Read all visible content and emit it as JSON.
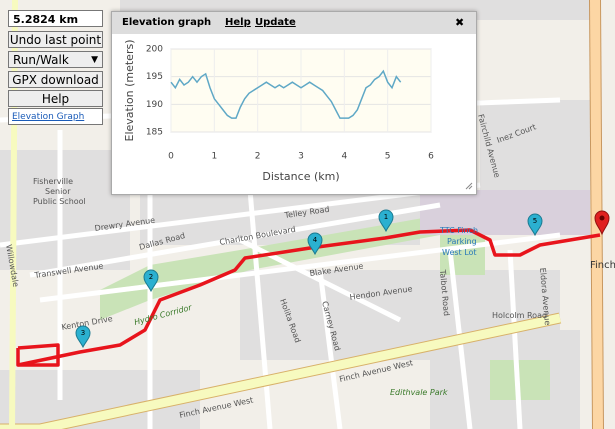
{
  "controls": {
    "distance": "5.2824 km",
    "undo": "Undo last point",
    "mode": "Run/Walk",
    "gpx": "GPX download",
    "help": "Help",
    "elevation_link": "Elevation Graph"
  },
  "popup": {
    "title": "Elevation graph",
    "help": "Help",
    "update": "Update",
    "close": "✖"
  },
  "chart_data": {
    "type": "line",
    "xlabel": "Distance (km)",
    "ylabel": "Elevation (meters)",
    "x": [
      0,
      0.1,
      0.2,
      0.3,
      0.4,
      0.5,
      0.6,
      0.7,
      0.8,
      0.9,
      1.0,
      1.1,
      1.2,
      1.3,
      1.4,
      1.5,
      1.6,
      1.7,
      1.8,
      1.9,
      2.0,
      2.1,
      2.2,
      2.3,
      2.4,
      2.5,
      2.6,
      2.7,
      2.8,
      2.9,
      3.0,
      3.1,
      3.2,
      3.3,
      3.4,
      3.5,
      3.6,
      3.7,
      3.8,
      3.9,
      4.0,
      4.1,
      4.2,
      4.3,
      4.4,
      4.5,
      4.6,
      4.7,
      4.8,
      4.9,
      5.0,
      5.1,
      5.2,
      5.3
    ],
    "values": [
      194,
      193,
      194.5,
      193.5,
      194,
      195,
      194,
      195,
      195.5,
      193,
      191,
      190,
      189,
      188,
      187.5,
      187.5,
      189.5,
      191,
      192,
      192.5,
      193,
      193.5,
      194,
      193.5,
      193,
      193.5,
      193,
      193.5,
      194,
      193.5,
      193,
      193.5,
      194,
      193.5,
      193,
      192.5,
      191.5,
      190.5,
      189,
      187.5,
      187.5,
      187.5,
      188,
      189,
      191,
      193,
      193.5,
      194.5,
      195,
      196,
      194,
      193,
      195,
      194
    ],
    "color": "#5fa8c6",
    "xlim": [
      0,
      6
    ],
    "ylim": [
      185,
      200
    ],
    "xticks": [
      0,
      1,
      2,
      3,
      4,
      5,
      6
    ],
    "yticks": [
      185,
      190,
      195,
      200
    ],
    "grid": true
  },
  "markers": [
    "1",
    "2",
    "3",
    "4",
    "5"
  ],
  "map": {
    "labels": [
      "Drewry Avenue",
      "Transwell Avenue",
      "Dallas Road",
      "Charlton Boulevard",
      "Telley Road",
      "Blake Avenue",
      "Hendon Avenue",
      "Holita Road",
      "Carney Road",
      "Finch Avenue West",
      "Finch Avenue West",
      "Kenton Drive",
      "Hydro Corridor",
      "Willowdale",
      "Fisherville",
      "Senior",
      "Public School",
      "TTC Finch",
      "Parking",
      "West Lot",
      "Talbot Road",
      "Holcolm Road",
      "Edithvale Park",
      "Inez Court",
      "Fairchild Avenue",
      "Finch",
      "Eldora Avenue"
    ]
  }
}
